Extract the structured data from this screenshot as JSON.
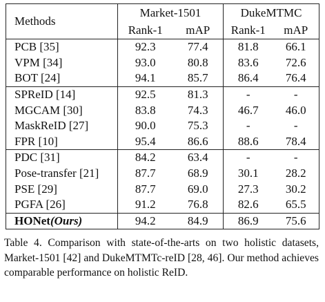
{
  "table": {
    "method_header": "Methods",
    "groups": [
      {
        "name": "Market-1501",
        "columns": [
          "Rank-1",
          "mAP"
        ]
      },
      {
        "name": "DukeMTMC",
        "columns": [
          "Rank-1",
          "mAP"
        ]
      }
    ],
    "sections": [
      [
        {
          "method": "PCB [35]",
          "cells": [
            "92.3",
            "77.4",
            "81.8",
            "66.1"
          ]
        },
        {
          "method": "VPM [34]",
          "cells": [
            "93.0",
            "80.8",
            "83.6",
            "72.6"
          ]
        },
        {
          "method": "BOT [24]",
          "cells": [
            "94.1",
            "85.7",
            "86.4",
            "76.4"
          ]
        }
      ],
      [
        {
          "method": "SPReID [14]",
          "cells": [
            "92.5",
            "81.3",
            "-",
            "-"
          ]
        },
        {
          "method": "MGCAM [30]",
          "cells": [
            "83.8",
            "74.3",
            "46.7",
            "46.0"
          ]
        },
        {
          "method": "MaskReID [27]",
          "cells": [
            "90.0",
            "75.3",
            "-",
            "-"
          ]
        },
        {
          "method": "FPR [10]",
          "cells": [
            "95.4",
            "86.6",
            "88.6",
            "78.4"
          ]
        }
      ],
      [
        {
          "method": "PDC [31]",
          "cells": [
            "84.2",
            "63.4",
            "-",
            "-"
          ]
        },
        {
          "method": "Pose-transfer [21]",
          "cells": [
            "87.7",
            "68.9",
            "30.1",
            "28.2"
          ]
        },
        {
          "method": "PSE [29]",
          "cells": [
            "87.7",
            "69.0",
            "27.3",
            "30.2"
          ]
        },
        {
          "method": "PGFA [26]",
          "cells": [
            "91.2",
            "76.8",
            "82.6",
            "65.5"
          ]
        }
      ],
      [
        {
          "method": "HONet",
          "method_suffix": "(Ours)",
          "cells": [
            "94.2",
            "84.9",
            "86.9",
            "75.6"
          ]
        }
      ]
    ]
  },
  "caption": "Table 4. Comparison with state-of-the-arts on two holistic datasets, Market-1501 [42] and DukeMTMTc-reID [28, 46]. Our method achieves comparable performance on holistic ReID."
}
